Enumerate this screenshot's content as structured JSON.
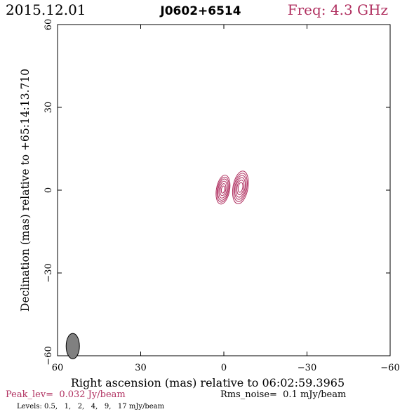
{
  "header": {
    "date": "2015.12.01",
    "source": "J0602+6514",
    "freq": "Freq: 4.3 GHz"
  },
  "footer": {
    "peak": "Peak_lev=  0.032 Jy/beam",
    "rms": "Rms_noise=  0.1 mJy/beam",
    "levels": "Levels: 0.5,   1,   2,   4,   9,   17 mJy/beam"
  },
  "colors": {
    "accent": "#b03060",
    "contour": "#b03060",
    "beam_fill": "#808080",
    "text": "#000000"
  },
  "chart_data": {
    "type": "contour",
    "xlabel": "Right ascension (mas) relative to 06:02:59.3965",
    "ylabel": "Declination (mas) relative to +65:14:13.710",
    "xlim": [
      60,
      -60
    ],
    "ylim": [
      -60,
      60
    ],
    "x_ticks": [
      60,
      30,
      0,
      -30,
      -60
    ],
    "x_tick_labels": [
      "60",
      "30",
      "0",
      "−30",
      "−60"
    ],
    "y_ticks": [
      -60,
      -30,
      0,
      30,
      60
    ],
    "y_tick_labels": [
      "−60",
      "−30",
      "0",
      "30",
      "60"
    ],
    "grid": false,
    "levels_mJy": [
      0.5,
      1,
      2,
      4,
      9,
      17
    ],
    "components": [
      {
        "x": 0.3,
        "y": 0.2,
        "semi_major": [
          5.3,
          4.6,
          3.9,
          3.1,
          2.2,
          1.3
        ],
        "axis_ratio": 0.45,
        "pa_deg": 10
      },
      {
        "x": -6.0,
        "y": 1.0,
        "semi_major": [
          6.0,
          5.2,
          4.4,
          3.6,
          2.7,
          1.8
        ],
        "axis_ratio": 0.45,
        "pa_deg": 10
      }
    ],
    "beam": {
      "x": 54.5,
      "y": -56.5,
      "major": 4.6,
      "minor": 2.4,
      "pa_deg": 0
    }
  }
}
